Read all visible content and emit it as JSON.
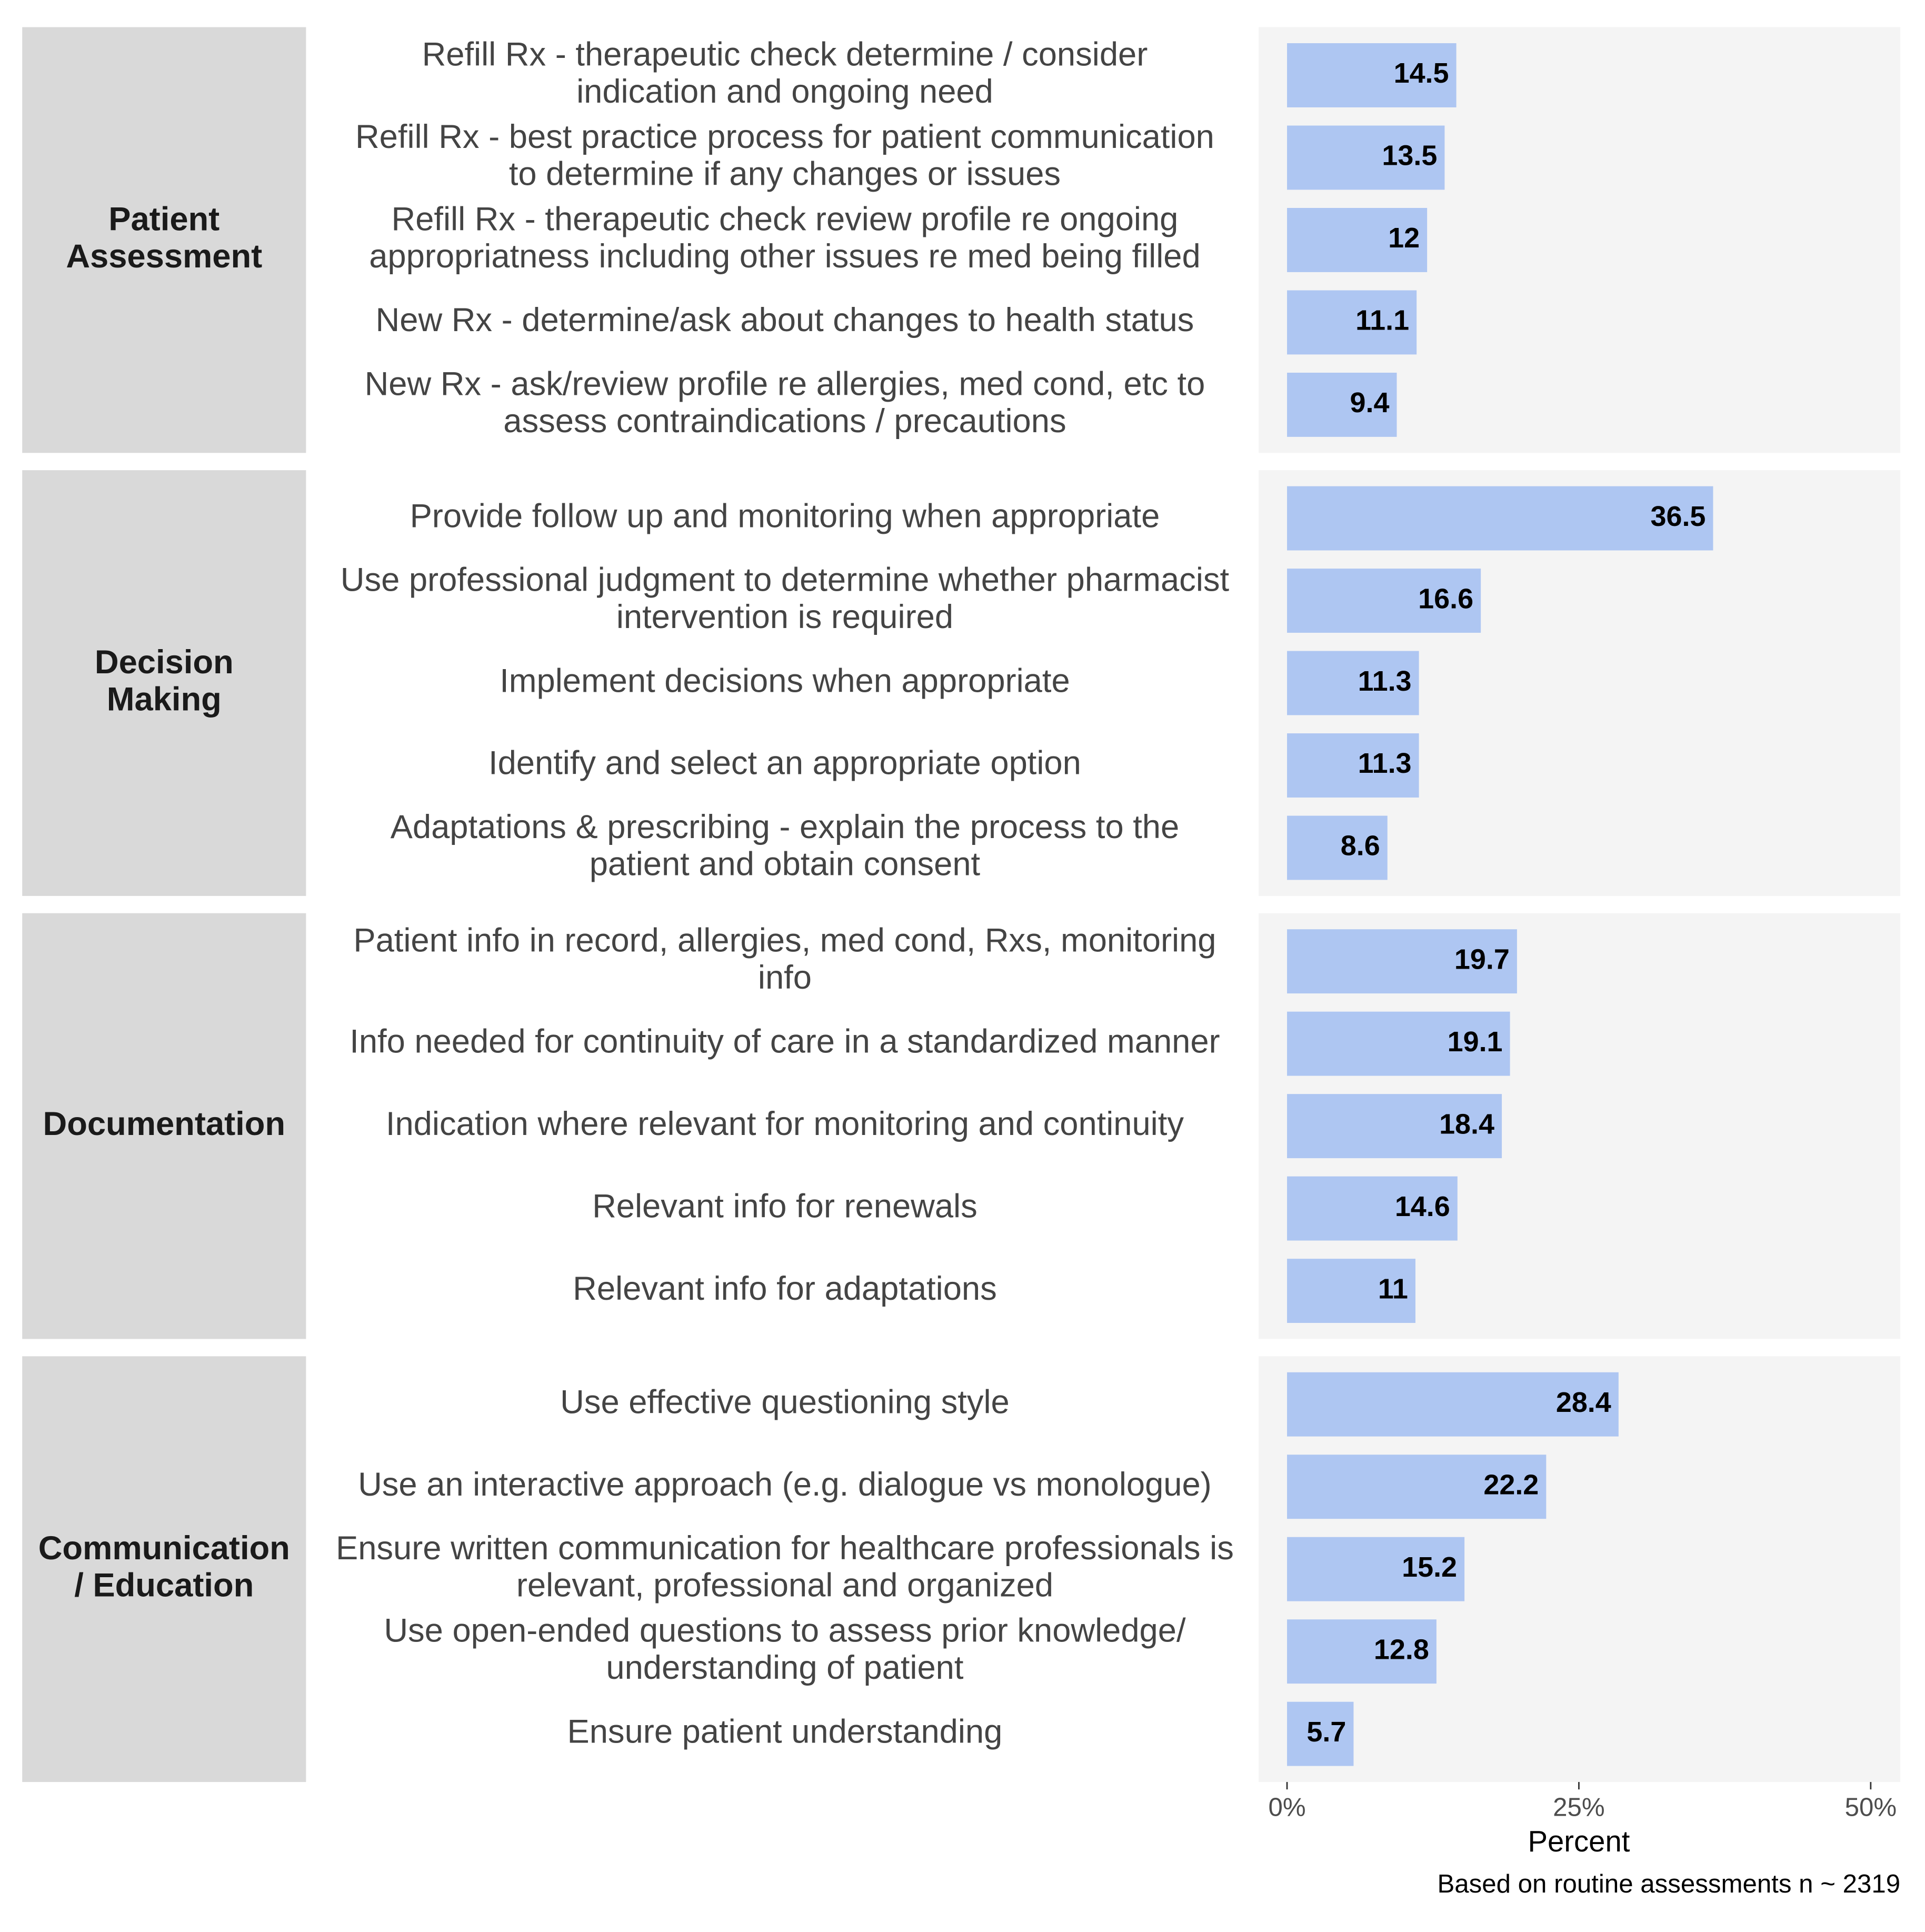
{
  "chart_data": {
    "type": "bar",
    "orientation": "horizontal",
    "grid": false,
    "bar_color": "#aec6f2",
    "panel_color": "#f4f4f4",
    "strip_color": "#d9d9d9",
    "xlabel": "Percent",
    "xlim": [
      0,
      50
    ],
    "xticks": [
      {
        "value": 0,
        "label": "0%"
      },
      {
        "value": 25,
        "label": "25%"
      },
      {
        "value": 50,
        "label": "50%"
      }
    ],
    "caption": "Based on routine assessments n ~ 2319",
    "facets": [
      {
        "name": [
          "Patient",
          "Assessment"
        ],
        "items": [
          {
            "lines": [
              "Refill Rx - therapeutic check determine / consider",
              "indication and ongoing need"
            ],
            "value": 14.5,
            "label": "14.5"
          },
          {
            "lines": [
              "Refill Rx - best practice process for patient communication",
              "to determine if any changes or issues"
            ],
            "value": 13.5,
            "label": "13.5"
          },
          {
            "lines": [
              "Refill Rx - therapeutic check review profile re ongoing",
              "appropriatness including other issues re med being filled"
            ],
            "value": 12,
            "label": "12"
          },
          {
            "lines": [
              "New Rx - determine/ask about changes to health status"
            ],
            "value": 11.1,
            "label": "11.1"
          },
          {
            "lines": [
              "New Rx - ask/review profile re allergies, med cond, etc to",
              "assess contraindications / precautions"
            ],
            "value": 9.4,
            "label": "9.4"
          }
        ]
      },
      {
        "name": [
          "Decision",
          "Making"
        ],
        "items": [
          {
            "lines": [
              "Provide follow up and monitoring when appropriate"
            ],
            "value": 36.5,
            "label": "36.5"
          },
          {
            "lines": [
              "Use professional judgment to determine whether pharmacist",
              "intervention is required"
            ],
            "value": 16.6,
            "label": "16.6"
          },
          {
            "lines": [
              "Implement decisions when appropriate"
            ],
            "value": 11.3,
            "label": "11.3"
          },
          {
            "lines": [
              "Identify and select an appropriate option"
            ],
            "value": 11.3,
            "label": "11.3"
          },
          {
            "lines": [
              "Adaptations & prescribing - explain the process to the",
              "patient and obtain consent"
            ],
            "value": 8.6,
            "label": "8.6"
          }
        ]
      },
      {
        "name": [
          "Documentation"
        ],
        "items": [
          {
            "lines": [
              "Patient info in record, allergies, med cond, Rxs, monitoring",
              "info"
            ],
            "value": 19.7,
            "label": "19.7"
          },
          {
            "lines": [
              "Info needed for continuity of care in a standardized manner"
            ],
            "value": 19.1,
            "label": "19.1"
          },
          {
            "lines": [
              "Indication where relevant for monitoring and continuity"
            ],
            "value": 18.4,
            "label": "18.4"
          },
          {
            "lines": [
              "Relevant info for renewals"
            ],
            "value": 14.6,
            "label": "14.6"
          },
          {
            "lines": [
              "Relevant info for adaptations"
            ],
            "value": 11,
            "label": "11"
          }
        ]
      },
      {
        "name": [
          "Communication",
          "/ Education"
        ],
        "items": [
          {
            "lines": [
              "Use effective questioning style"
            ],
            "value": 28.4,
            "label": "28.4"
          },
          {
            "lines": [
              "Use an interactive approach (e.g. dialogue vs monologue)"
            ],
            "value": 22.2,
            "label": "22.2"
          },
          {
            "lines": [
              "Ensure written communication for healthcare professionals is",
              "relevant, professional and organized"
            ],
            "value": 15.2,
            "label": "15.2"
          },
          {
            "lines": [
              "Use open-ended questions to assess prior knowledge/",
              "understanding of patient"
            ],
            "value": 12.8,
            "label": "12.8"
          },
          {
            "lines": [
              "Ensure patient understanding"
            ],
            "value": 5.7,
            "label": "5.7"
          }
        ]
      }
    ]
  }
}
